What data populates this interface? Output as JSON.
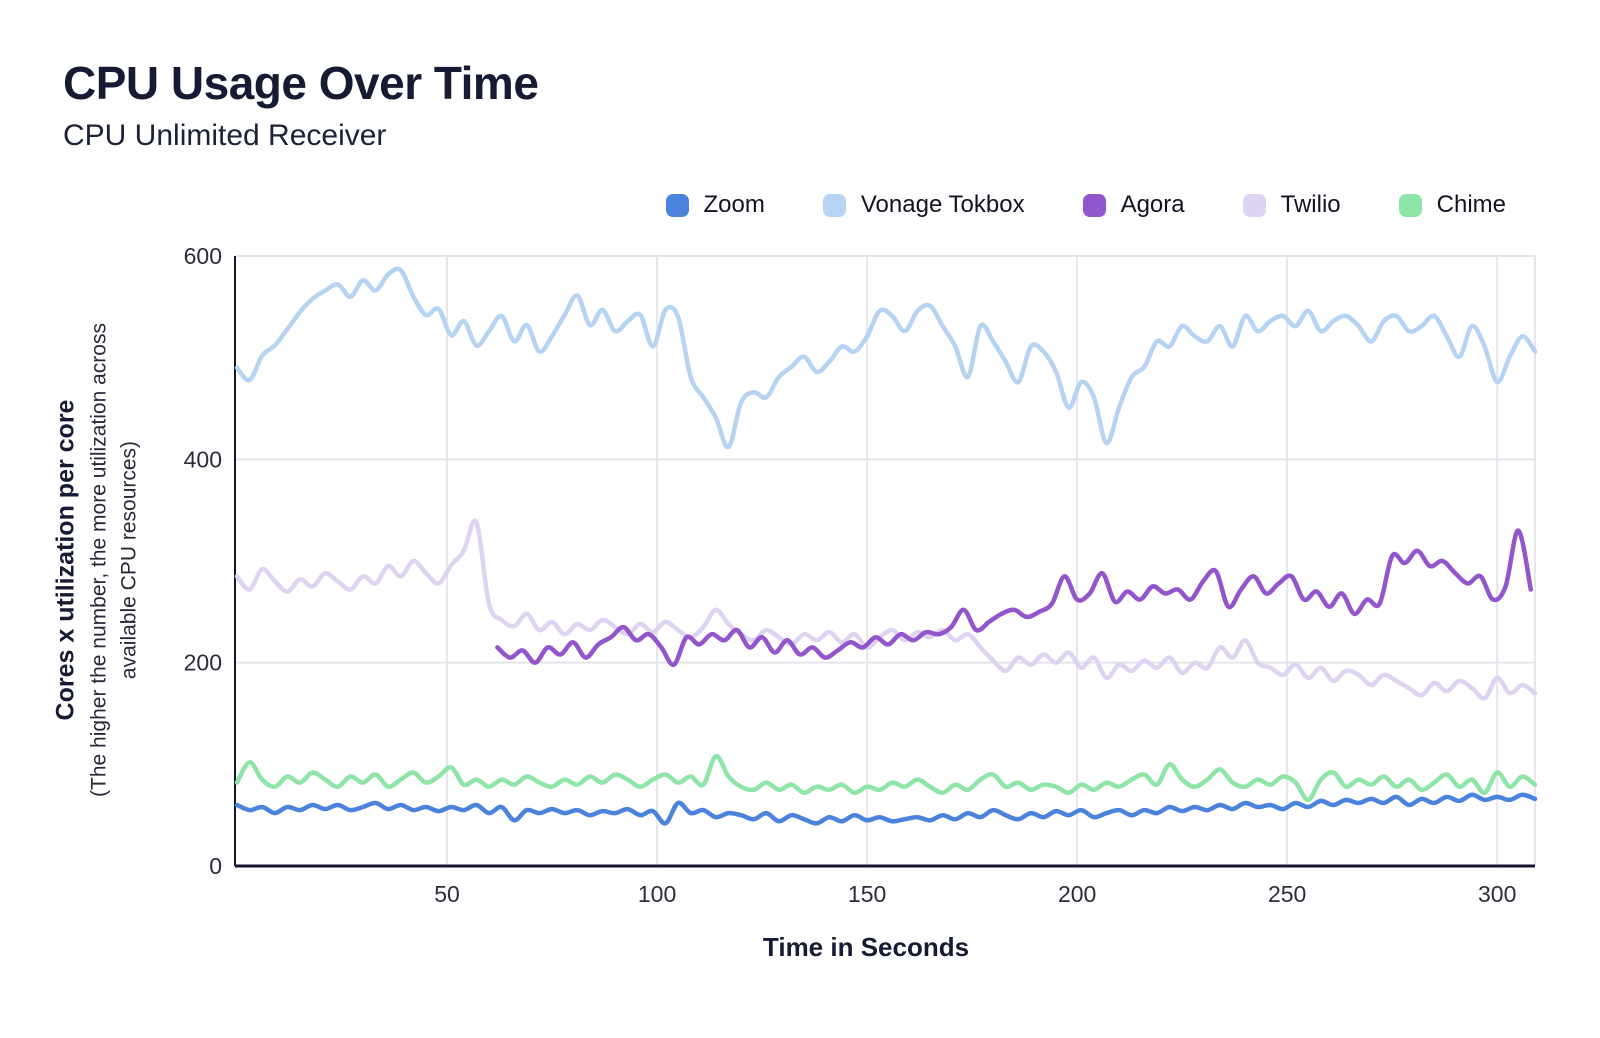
{
  "header": {
    "title": "CPU Usage Over Time",
    "subtitle": "CPU Unlimited Receiver"
  },
  "colors": {
    "text_dark": "#161b33",
    "grid": "#e5e5ec",
    "axis": "#14172b",
    "tick_label": "#2b2d3a"
  },
  "chart_data": {
    "type": "line",
    "title": "CPU Usage Over Time",
    "subtitle": "CPU Unlimited Receiver",
    "xlabel": "Time in Seconds",
    "ylabel": "Cores x utilization per core",
    "ylabel_note_line1": "(The higher the number, the more utilization across",
    "ylabel_note_line2": "available CPU resources)",
    "xlim": [
      0,
      309
    ],
    "ylim": [
      0,
      600
    ],
    "x_ticks": [
      50,
      100,
      150,
      200,
      250,
      300
    ],
    "y_ticks": [
      0,
      200,
      400,
      600
    ],
    "grid": true,
    "legend_position": "top-right",
    "draw_order": [
      "Vonage Tokbox",
      "Twilio",
      "Agora",
      "Zoom",
      "Chime"
    ],
    "series": [
      {
        "name": "Zoom",
        "color": "#4a82dc",
        "x_start": 0,
        "x_step": 3,
        "values": [
          60,
          55,
          58,
          52,
          58,
          55,
          60,
          56,
          60,
          55,
          58,
          62,
          56,
          60,
          55,
          58,
          54,
          58,
          55,
          60,
          52,
          58,
          45,
          55,
          52,
          56,
          52,
          55,
          50,
          54,
          52,
          56,
          50,
          54,
          42,
          62,
          52,
          55,
          48,
          52,
          50,
          46,
          52,
          44,
          50,
          46,
          42,
          48,
          44,
          50,
          45,
          48,
          44,
          46,
          48,
          45,
          50,
          46,
          52,
          48,
          55,
          50,
          46,
          52,
          48,
          54,
          50,
          55,
          48,
          52,
          55,
          50,
          55,
          52,
          58,
          54,
          58,
          55,
          60,
          56,
          62,
          58,
          60,
          56,
          62,
          58,
          64,
          60,
          65,
          62,
          66,
          62,
          68,
          60,
          66,
          62,
          68,
          64,
          70,
          65,
          68,
          65,
          70,
          66
        ]
      },
      {
        "name": "Vonage Tokbox",
        "color": "#b7d3f4",
        "x_start": 0,
        "x_step": 3,
        "values": [
          490,
          478,
          502,
          512,
          528,
          545,
          558,
          566,
          572,
          560,
          576,
          566,
          582,
          586,
          560,
          542,
          548,
          522,
          536,
          512,
          526,
          541,
          516,
          532,
          506,
          521,
          542,
          561,
          532,
          547,
          526,
          536,
          542,
          511,
          547,
          540,
          481,
          461,
          441,
          412,
          456,
          466,
          461,
          481,
          491,
          501,
          486,
          496,
          511,
          506,
          521,
          546,
          541,
          526,
          546,
          551,
          531,
          511,
          481,
          531,
          516,
          496,
          476,
          511,
          506,
          486,
          451,
          476,
          461,
          416,
          451,
          481,
          491,
          516,
          511,
          531,
          521,
          516,
          531,
          511,
          541,
          526,
          536,
          541,
          531,
          546,
          526,
          536,
          541,
          531,
          516,
          536,
          541,
          526,
          531,
          541,
          521,
          501,
          531,
          511,
          476,
          501,
          521,
          506
        ]
      },
      {
        "name": "Agora",
        "color": "#9355cb",
        "x_start": 62,
        "x_step": 3,
        "values": [
          215,
          205,
          212,
          200,
          215,
          208,
          220,
          205,
          218,
          225,
          235,
          222,
          228,
          215,
          198,
          225,
          218,
          228,
          222,
          232,
          215,
          225,
          210,
          222,
          208,
          215,
          205,
          212,
          220,
          215,
          225,
          218,
          228,
          222,
          230,
          228,
          235,
          252,
          232,
          240,
          248,
          252,
          245,
          250,
          258,
          285,
          262,
          268,
          288,
          260,
          270,
          262,
          275,
          268,
          272,
          262,
          280,
          290,
          255,
          272,
          285,
          268,
          278,
          285,
          262,
          270,
          255,
          268,
          248,
          262,
          258,
          305,
          298,
          310,
          295,
          300,
          288,
          278,
          285,
          262,
          275,
          330,
          272
        ]
      },
      {
        "name": "Twilio",
        "color": "#ded4f2",
        "x_start": 0,
        "x_step": 3,
        "values": [
          285,
          272,
          292,
          280,
          270,
          282,
          275,
          288,
          280,
          272,
          285,
          278,
          295,
          285,
          300,
          288,
          278,
          296,
          310,
          338,
          258,
          242,
          236,
          248,
          232,
          240,
          228,
          238,
          232,
          242,
          235,
          228,
          238,
          230,
          240,
          232,
          225,
          235,
          252,
          238,
          228,
          222,
          232,
          225,
          218,
          228,
          222,
          230,
          220,
          228,
          215,
          225,
          232,
          222,
          230,
          225,
          232,
          222,
          228,
          215,
          202,
          192,
          205,
          198,
          208,
          200,
          210,
          195,
          205,
          185,
          198,
          192,
          202,
          195,
          205,
          190,
          200,
          195,
          215,
          205,
          222,
          200,
          195,
          188,
          198,
          185,
          195,
          182,
          192,
          188,
          178,
          188,
          182,
          175,
          168,
          180,
          172,
          182,
          175,
          165,
          185,
          170,
          178,
          170
        ]
      },
      {
        "name": "Chime",
        "color": "#8fe5a8",
        "x_start": 0,
        "x_step": 3,
        "values": [
          82,
          102,
          85,
          78,
          88,
          82,
          92,
          85,
          78,
          88,
          82,
          90,
          78,
          85,
          92,
          82,
          88,
          97,
          80,
          85,
          78,
          85,
          80,
          88,
          82,
          78,
          85,
          80,
          88,
          82,
          90,
          85,
          78,
          85,
          90,
          82,
          88,
          80,
          108,
          88,
          78,
          75,
          82,
          75,
          80,
          72,
          78,
          75,
          80,
          72,
          78,
          75,
          82,
          78,
          85,
          78,
          72,
          80,
          75,
          85,
          90,
          78,
          82,
          75,
          80,
          78,
          72,
          80,
          75,
          82,
          78,
          85,
          90,
          80,
          100,
          85,
          78,
          85,
          95,
          82,
          78,
          85,
          80,
          88,
          82,
          65,
          85,
          92,
          78,
          85,
          80,
          88,
          78,
          85,
          75,
          82,
          90,
          78,
          85,
          72,
          92,
          78,
          88,
          80
        ]
      }
    ]
  }
}
